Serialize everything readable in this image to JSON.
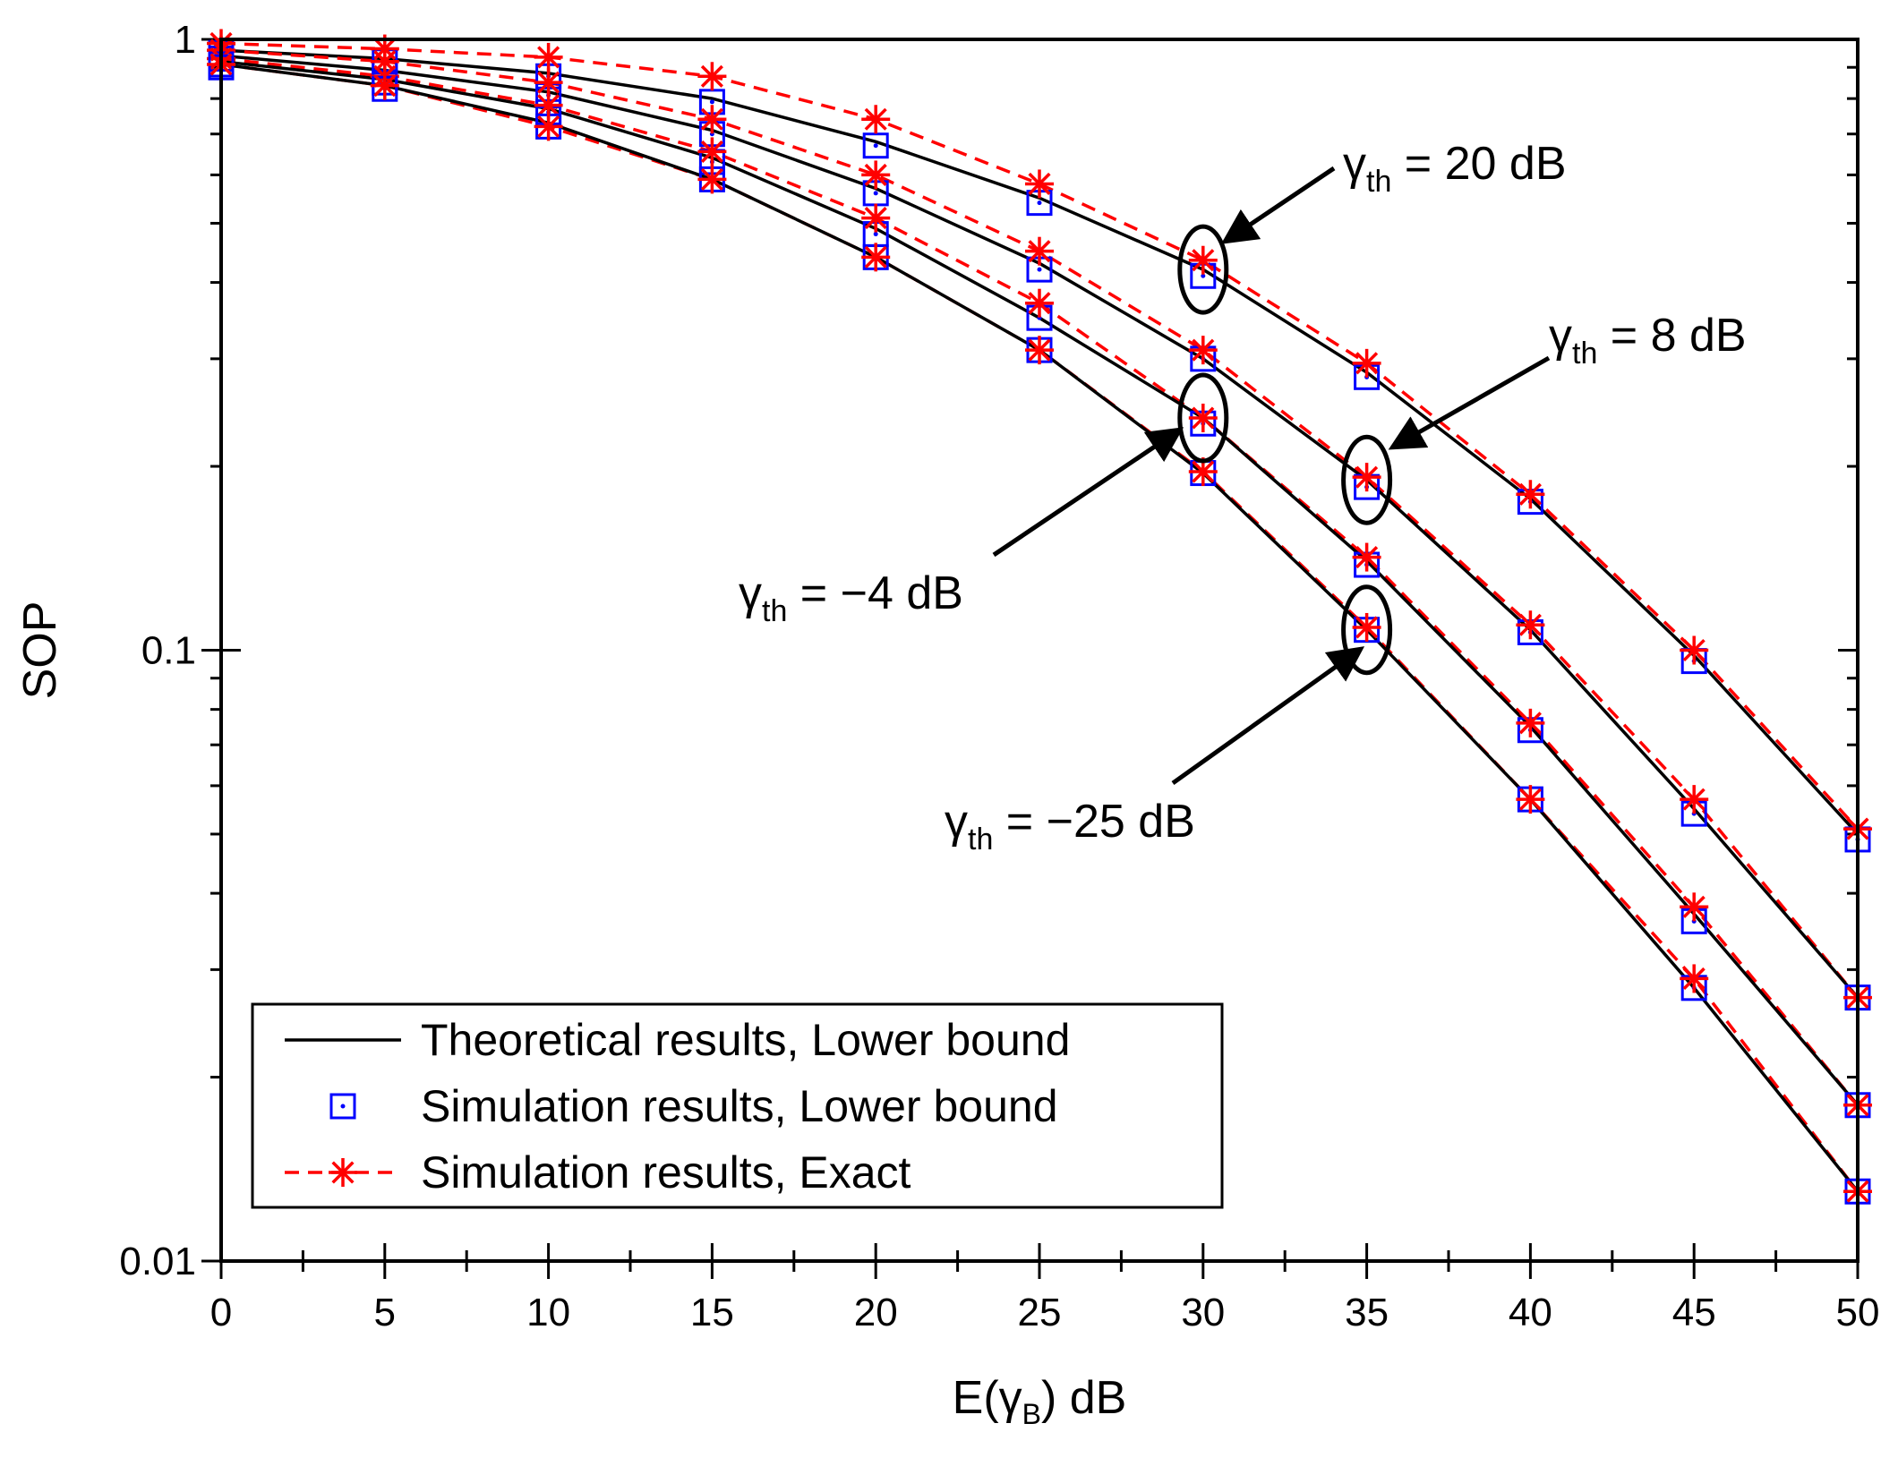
{
  "chart_data": {
    "type": "line",
    "title": "",
    "xlabel": "E(γ_B) dB",
    "xlabel_parts": {
      "prefix": "E(",
      "symbol": "γ",
      "subscript": "B",
      "suffix": ") dB"
    },
    "ylabel": "SOP",
    "xlim": [
      0,
      50
    ],
    "ylim": [
      0.01,
      1
    ],
    "yscale": "log",
    "x_ticks": [
      "0",
      "5",
      "10",
      "15",
      "20",
      "25",
      "30",
      "35",
      "40",
      "45",
      "50"
    ],
    "y_ticks": [
      "0.01",
      "0.1",
      "1"
    ],
    "x": [
      0,
      5,
      10,
      15,
      20,
      25,
      30,
      35,
      40,
      45,
      50
    ],
    "series": [
      {
        "name": "γth = 20 dB",
        "theory": [
          0.96,
          0.93,
          0.88,
          0.8,
          0.68,
          0.55,
          0.42,
          0.285,
          0.177,
          0.098,
          0.05
        ],
        "simulation": [
          0.95,
          0.92,
          0.87,
          0.79,
          0.67,
          0.54,
          0.41,
          0.28,
          0.175,
          0.096,
          0.049
        ],
        "exact": [
          0.985,
          0.965,
          0.935,
          0.87,
          0.74,
          0.58,
          0.435,
          0.295,
          0.18,
          0.1,
          0.051
        ]
      },
      {
        "name": "γth = 8 dB",
        "theory": [
          0.94,
          0.89,
          0.82,
          0.71,
          0.57,
          0.43,
          0.3,
          0.19,
          0.108,
          0.055,
          0.027
        ],
        "simulation": [
          0.93,
          0.88,
          0.81,
          0.7,
          0.56,
          0.42,
          0.3,
          0.185,
          0.107,
          0.054,
          0.027
        ],
        "exact": [
          0.96,
          0.92,
          0.85,
          0.74,
          0.6,
          0.45,
          0.31,
          0.192,
          0.11,
          0.057,
          0.027
        ]
      },
      {
        "name": "γth = −4 dB",
        "theory": [
          0.92,
          0.86,
          0.77,
          0.64,
          0.49,
          0.35,
          0.24,
          0.14,
          0.075,
          0.037,
          0.018
        ],
        "simulation": [
          0.91,
          0.85,
          0.76,
          0.63,
          0.48,
          0.35,
          0.235,
          0.138,
          0.074,
          0.036,
          0.018
        ],
        "exact": [
          0.93,
          0.87,
          0.78,
          0.655,
          0.51,
          0.37,
          0.24,
          0.142,
          0.076,
          0.038,
          0.018
        ]
      },
      {
        "name": "γth = −25 dB",
        "theory": [
          0.91,
          0.84,
          0.73,
          0.59,
          0.44,
          0.31,
          0.195,
          0.108,
          0.057,
          0.028,
          0.013
        ],
        "simulation": [
          0.9,
          0.83,
          0.72,
          0.59,
          0.44,
          0.31,
          0.195,
          0.108,
          0.057,
          0.028,
          0.013
        ],
        "exact": [
          0.91,
          0.84,
          0.72,
          0.59,
          0.44,
          0.31,
          0.196,
          0.109,
          0.057,
          0.029,
          0.013
        ]
      }
    ],
    "annotations": [
      {
        "symbol": "γ",
        "subscript": "th",
        "text": " =  20 dB",
        "target_x": 30,
        "target_y": 0.42
      },
      {
        "symbol": "γ",
        "subscript": "th",
        "text": " =  8 dB",
        "target_x": 35,
        "target_y": 0.19
      },
      {
        "symbol": "γ",
        "subscript": "th",
        "text": " =  −4 dB",
        "target_x": 30,
        "target_y": 0.24
      },
      {
        "symbol": "γ",
        "subscript": "th",
        "text": " =  −25 dB",
        "target_x": 35,
        "target_y": 0.108
      }
    ],
    "legend": {
      "position": "bottom-left",
      "entries": [
        "Theoretical results, Lower bound",
        "Simulation results, Lower bound",
        "Simulation results, Exact"
      ]
    },
    "grid": false
  },
  "colors": {
    "theory": "#000000",
    "simulation": "#0000ff",
    "exact": "#ff0000"
  }
}
